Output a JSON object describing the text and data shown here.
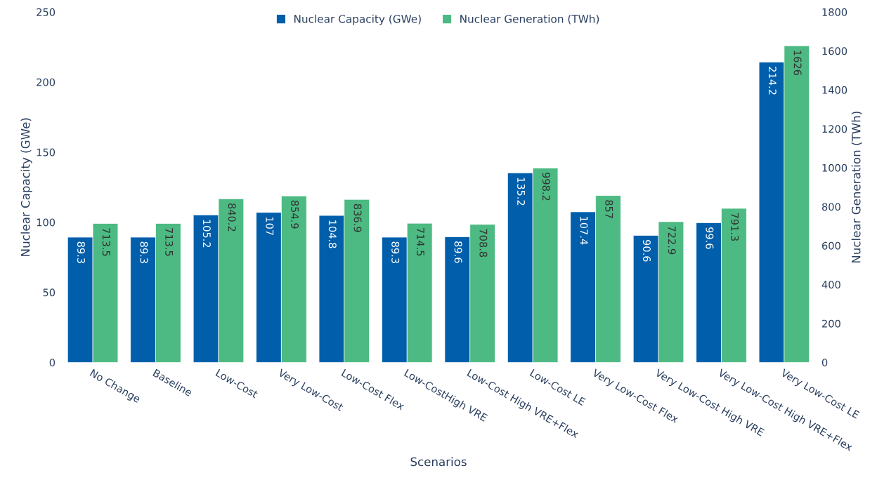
{
  "chart_data": {
    "type": "bar",
    "xlabel": "Scenarios",
    "ylabel": "Nuclear Capacity (GWe)",
    "y2label": "Nuclear Generation (TWh)",
    "categories": [
      "No Change",
      "Baseline",
      "Low-Cost",
      "Very Low-Cost",
      "Low-Cost Flex",
      "Low-CostHigh VRE",
      "Low-Cost High VRE+Flex",
      "Low-Cost LE",
      "Very Low-Cost Flex",
      "Very Low-Cost High VRE",
      "Very Low-Cost High VRE+Flex",
      "Very Low-Cost LE"
    ],
    "series": [
      {
        "name": "Nuclear Capacity (GWe)",
        "color": "#005eaa",
        "values": [
          89.3,
          89.3,
          105.2,
          107,
          104.8,
          89.3,
          89.6,
          135.2,
          107.4,
          90.6,
          99.6,
          214.2
        ]
      },
      {
        "name": "Nuclear Generation (TWh)",
        "color": "#4cba82",
        "axis": "y2",
        "values": [
          713.5,
          713.5,
          840.2,
          854.9,
          836.9,
          714.5,
          708.8,
          998.2,
          857,
          722.9,
          791.3,
          1626
        ]
      }
    ],
    "ylim": [
      0,
      250
    ],
    "yticks": [
      0,
      50,
      100,
      150,
      200,
      250
    ],
    "y2lim": [
      0,
      1800
    ],
    "y2ticks": [
      0,
      200,
      400,
      600,
      800,
      1000,
      1200,
      1400,
      1600,
      1800
    ],
    "data_labels": true,
    "legend": "top",
    "grid": false
  }
}
